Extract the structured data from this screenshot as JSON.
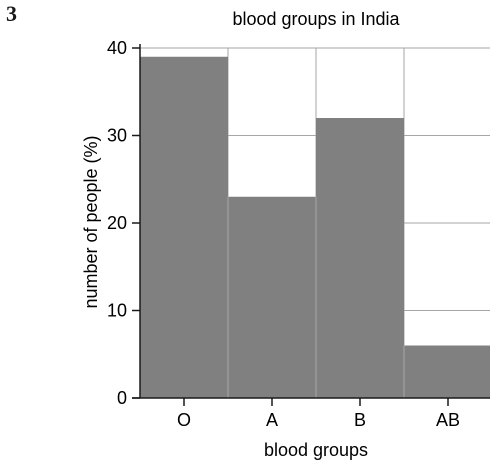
{
  "question_number": "3",
  "chart_data": {
    "type": "bar",
    "title": "blood groups in India",
    "xlabel": "blood groups",
    "ylabel": "number of people (%)",
    "categories": [
      "O",
      "A",
      "B",
      "AB"
    ],
    "values": [
      39,
      23,
      32,
      6
    ],
    "ylim": [
      0,
      40
    ],
    "yticks": [
      0,
      10,
      20,
      30,
      40
    ],
    "grid": true,
    "bar_color": "#808080",
    "grid_color": "#a6a6a6"
  }
}
